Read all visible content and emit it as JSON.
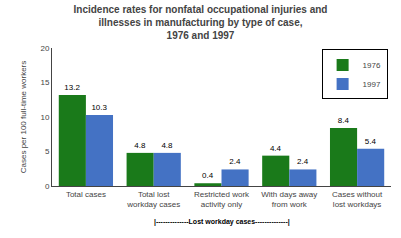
{
  "chart_data": {
    "type": "bar",
    "title": "Incidence rates for nonfatal occupational injuries and\nillnesses in manufacturing by type of case,\n1976 and 1997",
    "categories": [
      "Total cases",
      "Total lost\nworkday cases",
      "Restricted work\nactivity only",
      "With days away\nfrom work",
      "Cases without\nlost workdays"
    ],
    "series": [
      {
        "name": "1976",
        "color": "#1a7a1a",
        "values": [
          13.2,
          4.8,
          0.4,
          4.4,
          8.4
        ]
      },
      {
        "name": "1997",
        "color": "#4472c4",
        "values": [
          10.3,
          4.8,
          2.4,
          2.4,
          5.4
        ]
      }
    ],
    "ylabel": "Cases per 100 full-time workers",
    "ylim": [
      0,
      20
    ],
    "yticks": [
      0,
      5,
      10,
      15,
      20
    ],
    "grid": false,
    "legend": "upper right",
    "data_labels": true,
    "annotations": [
      {
        "text": "|--------------Lost workday cases--------------|",
        "x": "Restricted work\nactivity only"
      }
    ]
  }
}
